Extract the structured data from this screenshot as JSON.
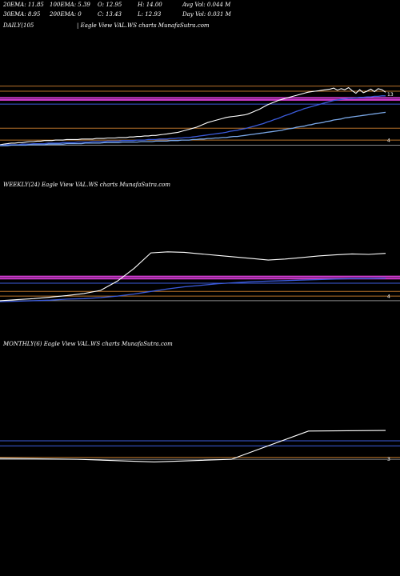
{
  "header": {
    "row1": [
      {
        "id": "ema20",
        "text": "20EMA: 11.85"
      },
      {
        "id": "ema100",
        "text": "100EMA: 5.39"
      },
      {
        "id": "open",
        "text": "O: 12.95"
      },
      {
        "id": "high",
        "text": "H: 14.00"
      },
      {
        "id": "avgvol",
        "text": "Avg Vol: 0.044  M"
      }
    ],
    "row2": [
      {
        "id": "ema30",
        "text": "30EMA: 8.95"
      },
      {
        "id": "ema200",
        "text": "200EMA: 0"
      },
      {
        "id": "close",
        "text": "C: 13.43"
      },
      {
        "id": "low",
        "text": "L: 12.93"
      },
      {
        "id": "dayvol",
        "text": "Day Vol: 0.031  M"
      }
    ]
  },
  "colors": {
    "background": "#000000",
    "price": "#ffffff",
    "ema_blue": "#3b5bdb",
    "ema_lightblue": "#7aa8e8",
    "ema_magenta": "#d23cd2",
    "level_orange": "#b8732a",
    "level_gray": "#888888"
  },
  "chart_data": [
    {
      "id": "daily",
      "type": "line",
      "title": "DAILY(105",
      "subtitle": "| Eagle  View  VAL.WS charts MunafaSutra.com",
      "tick_labels": [
        "13",
        "4"
      ],
      "ylim": [
        1,
        15
      ],
      "level_lines": [
        {
          "value": 14.6,
          "color": "#b8732a"
        },
        {
          "value": 13.6,
          "color": "#b8732a"
        },
        {
          "value": 12.3,
          "color": "#d23cd2"
        },
        {
          "value": 11.9,
          "color": "#d23cd2"
        },
        {
          "value": 11.1,
          "color": "#3b5bdb"
        },
        {
          "value": 6.4,
          "color": "#b8732a"
        },
        {
          "value": 4.1,
          "color": "#b8732a"
        },
        {
          "value": 3.1,
          "color": "#888888"
        }
      ],
      "series": [
        {
          "role": "price",
          "color": "#ffffff",
          "values": [
            3.2,
            3.3,
            3.4,
            3.5,
            3.5,
            3.6,
            3.6,
            3.7,
            3.8,
            3.8,
            3.9,
            3.9,
            4.0,
            4.0,
            4.0,
            4.1,
            4.1,
            4.1,
            4.2,
            4.2,
            4.2,
            4.2,
            4.3,
            4.3,
            4.3,
            4.3,
            4.4,
            4.4,
            4.4,
            4.5,
            4.5,
            4.5,
            4.6,
            4.6,
            4.6,
            4.7,
            4.7,
            4.8,
            4.8,
            4.9,
            4.9,
            5.0,
            5.0,
            5.1,
            5.2,
            5.3,
            5.4,
            5.5,
            5.6,
            5.8,
            6.0,
            6.2,
            6.4,
            6.6,
            6.9,
            7.2,
            7.5,
            7.7,
            7.9,
            8.1,
            8.3,
            8.5,
            8.6,
            8.7,
            8.8,
            8.9,
            9.0,
            9.2,
            9.5,
            9.8,
            10.1,
            10.5,
            10.9,
            11.2,
            11.5,
            11.8,
            12.0,
            12.2,
            12.4,
            12.6,
            12.8,
            13.0,
            13.2,
            13.4,
            13.5,
            13.6,
            13.7,
            13.8,
            13.9,
            14.0,
            14.2,
            13.8,
            14.1,
            13.9,
            14.3,
            13.7,
            13.2,
            13.9,
            13.3,
            13.6,
            14.0,
            13.5,
            14.1,
            13.9,
            13.4
          ]
        },
        {
          "role": "ema",
          "color": "#3b5bdb",
          "values": [
            3.1,
            3.1,
            3.2,
            3.2,
            3.2,
            3.2,
            3.3,
            3.3,
            3.3,
            3.4,
            3.4,
            3.4,
            3.4,
            3.5,
            3.5,
            3.5,
            3.5,
            3.6,
            3.6,
            3.6,
            3.6,
            3.7,
            3.7,
            3.7,
            3.7,
            3.8,
            3.8,
            3.8,
            3.8,
            3.9,
            3.9,
            3.9,
            3.9,
            4.0,
            4.0,
            4.0,
            4.0,
            4.1,
            4.1,
            4.1,
            4.2,
            4.2,
            4.2,
            4.3,
            4.3,
            4.3,
            4.4,
            4.4,
            4.5,
            4.5,
            4.6,
            4.6,
            4.7,
            4.8,
            4.9,
            5.0,
            5.1,
            5.2,
            5.3,
            5.4,
            5.5,
            5.6,
            5.8,
            5.9,
            6.0,
            6.2,
            6.3,
            6.5,
            6.7,
            6.9,
            7.1,
            7.3,
            7.6,
            7.8,
            8.1,
            8.3,
            8.6,
            8.9,
            9.1,
            9.4,
            9.7,
            9.9,
            10.2,
            10.4,
            10.6,
            10.8,
            11.0,
            11.2,
            11.4,
            11.6,
            11.8,
            11.9,
            12.0,
            12.1,
            12.2,
            12.2,
            12.3,
            12.4,
            12.4,
            12.5,
            12.5,
            12.6,
            12.6,
            12.7,
            12.7
          ]
        },
        {
          "role": "ema",
          "color": "#7aa8e8",
          "values": [
            3.0,
            3.0,
            3.0,
            3.1,
            3.1,
            3.1,
            3.1,
            3.1,
            3.2,
            3.2,
            3.2,
            3.2,
            3.2,
            3.3,
            3.3,
            3.3,
            3.3,
            3.3,
            3.4,
            3.4,
            3.4,
            3.4,
            3.4,
            3.5,
            3.5,
            3.5,
            3.5,
            3.5,
            3.6,
            3.6,
            3.6,
            3.6,
            3.6,
            3.7,
            3.7,
            3.7,
            3.7,
            3.7,
            3.8,
            3.8,
            3.8,
            3.8,
            3.9,
            3.9,
            3.9,
            3.9,
            4.0,
            4.0,
            4.0,
            4.1,
            4.1,
            4.1,
            4.2,
            4.2,
            4.3,
            4.3,
            4.4,
            4.4,
            4.5,
            4.5,
            4.6,
            4.6,
            4.7,
            4.8,
            4.8,
            4.9,
            5.0,
            5.1,
            5.2,
            5.3,
            5.4,
            5.5,
            5.6,
            5.7,
            5.8,
            5.9,
            6.0,
            6.2,
            6.3,
            6.4,
            6.6,
            6.7,
            6.8,
            7.0,
            7.1,
            7.3,
            7.4,
            7.5,
            7.7,
            7.8,
            8.0,
            8.1,
            8.2,
            8.4,
            8.5,
            8.6,
            8.7,
            8.8,
            8.9,
            9.0,
            9.1,
            9.2,
            9.3,
            9.4,
            9.5
          ]
        }
      ]
    },
    {
      "id": "weekly",
      "type": "line",
      "title": "WEEKLY(24) Eagle  View  VAL.WS charts MunafaSutra.com",
      "tick_labels": [
        "4"
      ],
      "ylim": [
        1,
        15
      ],
      "level_lines": [
        {
          "value": 7.9,
          "color": "#d23cd2"
        },
        {
          "value": 7.5,
          "color": "#d23cd2"
        },
        {
          "value": 6.6,
          "color": "#3b5bdb"
        },
        {
          "value": 5.0,
          "color": "#b8732a"
        },
        {
          "value": 4.1,
          "color": "#b8732a"
        },
        {
          "value": 3.2,
          "color": "#888888"
        }
      ],
      "series": [
        {
          "role": "price",
          "color": "#ffffff",
          "values": [
            3.2,
            3.4,
            3.6,
            3.9,
            4.2,
            4.6,
            5.2,
            7.0,
            9.5,
            12.5,
            12.7,
            12.6,
            12.3,
            12.0,
            11.7,
            11.4,
            11.1,
            11.3,
            11.6,
            11.9,
            12.1,
            12.3,
            12.2,
            12.4
          ]
        },
        {
          "role": "ema",
          "color": "#3b5bdb",
          "values": [
            3.0,
            3.1,
            3.2,
            3.3,
            3.5,
            3.6,
            3.8,
            4.1,
            4.5,
            5.0,
            5.5,
            5.9,
            6.2,
            6.5,
            6.7,
            6.9,
            7.0,
            7.1,
            7.2,
            7.3,
            7.4,
            7.5,
            7.5,
            7.6
          ]
        }
      ]
    },
    {
      "id": "monthly",
      "type": "line",
      "title": "MONTHLY(6) Eagle  View  VAL.WS charts MunafaSutra.com",
      "tick_labels": [
        "3"
      ],
      "ylim": [
        1,
        15
      ],
      "level_lines": [
        {
          "value": 6.6,
          "color": "#3b5bdb"
        },
        {
          "value": 5.6,
          "color": "#3b5bdb"
        },
        {
          "value": 3.4,
          "color": "#b8732a"
        },
        {
          "value": 3.0,
          "color": "#888888"
        }
      ],
      "series": [
        {
          "role": "price",
          "color": "#ffffff",
          "values": [
            3.2,
            3.0,
            2.5,
            3.0,
            8.5,
            8.6
          ]
        }
      ]
    }
  ]
}
